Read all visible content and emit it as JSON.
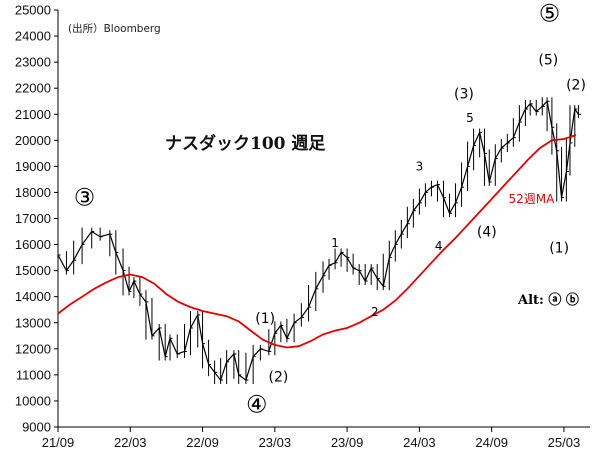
{
  "chart_data": {
    "type": "line",
    "title": "ナスダック100 週足",
    "source": "(出所）Bloomberg",
    "ylim": [
      9000,
      25000
    ],
    "yticks": [
      9000,
      10000,
      11000,
      12000,
      13000,
      14000,
      15000,
      16000,
      17000,
      18000,
      19000,
      20000,
      21000,
      22000,
      23000,
      24000,
      25000
    ],
    "xlim": [
      0,
      43
    ],
    "xticks": [
      {
        "label": "21/09",
        "pos": 0
      },
      {
        "label": "22/03",
        "pos": 6
      },
      {
        "label": "22/09",
        "pos": 12
      },
      {
        "label": "23/03",
        "pos": 18
      },
      {
        "label": "23/09",
        "pos": 24
      },
      {
        "label": "24/03",
        "pos": 30
      },
      {
        "label": "24/09",
        "pos": 36
      },
      {
        "label": "25/03",
        "pos": 42
      }
    ],
    "series": [
      {
        "name": "",
        "kind": "weekly-price",
        "points": [
          [
            0.0,
            15600
          ],
          [
            0.7,
            15000
          ],
          [
            1.3,
            15400
          ],
          [
            2.0,
            16000
          ],
          [
            2.8,
            16500
          ],
          [
            3.5,
            16300
          ],
          [
            4.3,
            16400
          ],
          [
            4.8,
            15700
          ],
          [
            5.4,
            15000
          ],
          [
            5.9,
            14200
          ],
          [
            6.3,
            14600
          ],
          [
            6.8,
            14100
          ],
          [
            7.3,
            13800
          ],
          [
            7.8,
            12500
          ],
          [
            8.4,
            12800
          ],
          [
            8.9,
            11700
          ],
          [
            9.3,
            12400
          ],
          [
            9.9,
            11800
          ],
          [
            10.5,
            11900
          ],
          [
            11.0,
            12800
          ],
          [
            11.6,
            13300
          ],
          [
            12.0,
            12200
          ],
          [
            12.5,
            11400
          ],
          [
            13.0,
            11100
          ],
          [
            13.5,
            10800
          ],
          [
            14.0,
            11500
          ],
          [
            14.6,
            11800
          ],
          [
            15.0,
            11000
          ],
          [
            15.6,
            10800
          ],
          [
            16.2,
            11700
          ],
          [
            16.8,
            12000
          ],
          [
            17.5,
            11900
          ],
          [
            18.0,
            12600
          ],
          [
            18.5,
            12900
          ],
          [
            19.0,
            12400
          ],
          [
            19.6,
            13000
          ],
          [
            20.2,
            13200
          ],
          [
            20.8,
            13600
          ],
          [
            21.4,
            14300
          ],
          [
            22.0,
            14800
          ],
          [
            22.5,
            15200
          ],
          [
            23.0,
            15300
          ],
          [
            23.5,
            15700
          ],
          [
            24.0,
            15500
          ],
          [
            24.5,
            15100
          ],
          [
            25.0,
            15000
          ],
          [
            25.5,
            14600
          ],
          [
            26.0,
            15100
          ],
          [
            26.5,
            14700
          ],
          [
            27.0,
            14400
          ],
          [
            27.5,
            15500
          ],
          [
            28.0,
            16000
          ],
          [
            28.5,
            16400
          ],
          [
            29.0,
            16800
          ],
          [
            29.5,
            17300
          ],
          [
            30.0,
            17600
          ],
          [
            30.5,
            18000
          ],
          [
            31.0,
            18200
          ],
          [
            31.5,
            18300
          ],
          [
            32.0,
            17800
          ],
          [
            32.5,
            17200
          ],
          [
            33.0,
            17600
          ],
          [
            33.5,
            18200
          ],
          [
            34.0,
            19000
          ],
          [
            34.5,
            19800
          ],
          [
            35.0,
            20300
          ],
          [
            35.4,
            19500
          ],
          [
            35.8,
            18400
          ],
          [
            36.3,
            19300
          ],
          [
            36.8,
            19700
          ],
          [
            37.3,
            19900
          ],
          [
            37.8,
            20100
          ],
          [
            38.3,
            20700
          ],
          [
            38.8,
            21200
          ],
          [
            39.2,
            21400
          ],
          [
            39.7,
            21100
          ],
          [
            40.2,
            21300
          ],
          [
            40.6,
            21500
          ],
          [
            41.0,
            20500
          ],
          [
            41.4,
            19600
          ],
          [
            41.8,
            17800
          ],
          [
            42.2,
            18800
          ],
          [
            42.5,
            19900
          ],
          [
            42.9,
            21200
          ],
          [
            43.2,
            21000
          ]
        ]
      },
      {
        "name": "52週MA",
        "kind": "moving-average",
        "color": "#e00000",
        "points": [
          [
            0,
            13350
          ],
          [
            1,
            13700
          ],
          [
            2,
            14000
          ],
          [
            3,
            14300
          ],
          [
            4,
            14550
          ],
          [
            5,
            14750
          ],
          [
            6,
            14850
          ],
          [
            7,
            14750
          ],
          [
            8,
            14500
          ],
          [
            9,
            14100
          ],
          [
            10,
            13800
          ],
          [
            11,
            13600
          ],
          [
            12,
            13450
          ],
          [
            13,
            13350
          ],
          [
            14,
            13250
          ],
          [
            15,
            13050
          ],
          [
            16,
            12700
          ],
          [
            17,
            12350
          ],
          [
            18,
            12150
          ],
          [
            19,
            12050
          ],
          [
            20,
            12100
          ],
          [
            21,
            12300
          ],
          [
            22,
            12550
          ],
          [
            23,
            12700
          ],
          [
            24,
            12800
          ],
          [
            25,
            13000
          ],
          [
            26,
            13250
          ],
          [
            27,
            13500
          ],
          [
            28,
            13850
          ],
          [
            29,
            14300
          ],
          [
            30,
            14800
          ],
          [
            31,
            15300
          ],
          [
            32,
            15800
          ],
          [
            33,
            16250
          ],
          [
            34,
            16750
          ],
          [
            35,
            17250
          ],
          [
            36,
            17750
          ],
          [
            37,
            18250
          ],
          [
            38,
            18750
          ],
          [
            39,
            19250
          ],
          [
            40,
            19700
          ],
          [
            41,
            20000
          ],
          [
            42,
            20050
          ],
          [
            43,
            20200
          ]
        ]
      }
    ],
    "annotations": [
      {
        "text": "③",
        "x": 2.2,
        "y": 17500,
        "style": "big"
      },
      {
        "text": "④",
        "x": 16.5,
        "y": 9550,
        "style": "big"
      },
      {
        "text": "⑤",
        "x": 40.8,
        "y": 24550,
        "style": "big"
      },
      {
        "text": "(1)",
        "x": 17.2,
        "y": 13000,
        "style": "normal"
      },
      {
        "text": "(2)",
        "x": 18.3,
        "y": 10750,
        "style": "normal"
      },
      {
        "text": "1",
        "x": 23.0,
        "y": 15900,
        "style": "small"
      },
      {
        "text": "2",
        "x": 26.3,
        "y": 13250,
        "style": "small"
      },
      {
        "text": "3",
        "x": 30.0,
        "y": 18850,
        "style": "small"
      },
      {
        "text": "4",
        "x": 31.6,
        "y": 15800,
        "style": "small"
      },
      {
        "text": "(3)",
        "x": 33.7,
        "y": 21600,
        "style": "normal"
      },
      {
        "text": "5",
        "x": 34.2,
        "y": 20700,
        "style": "small"
      },
      {
        "text": "(4)",
        "x": 35.6,
        "y": 16300,
        "style": "normal"
      },
      {
        "text": "(5)",
        "x": 40.7,
        "y": 22900,
        "style": "normal"
      },
      {
        "text": "(2)",
        "x": 43.0,
        "y": 21950,
        "style": "normal"
      },
      {
        "text": "(1)",
        "x": 41.6,
        "y": 15700,
        "style": "normal"
      }
    ],
    "ma_label": {
      "text": "52週MA",
      "x": 37.4,
      "y": 17600
    },
    "alt_label": "Alt: ⓐ ⓑ",
    "grid": false,
    "legend": "none"
  }
}
